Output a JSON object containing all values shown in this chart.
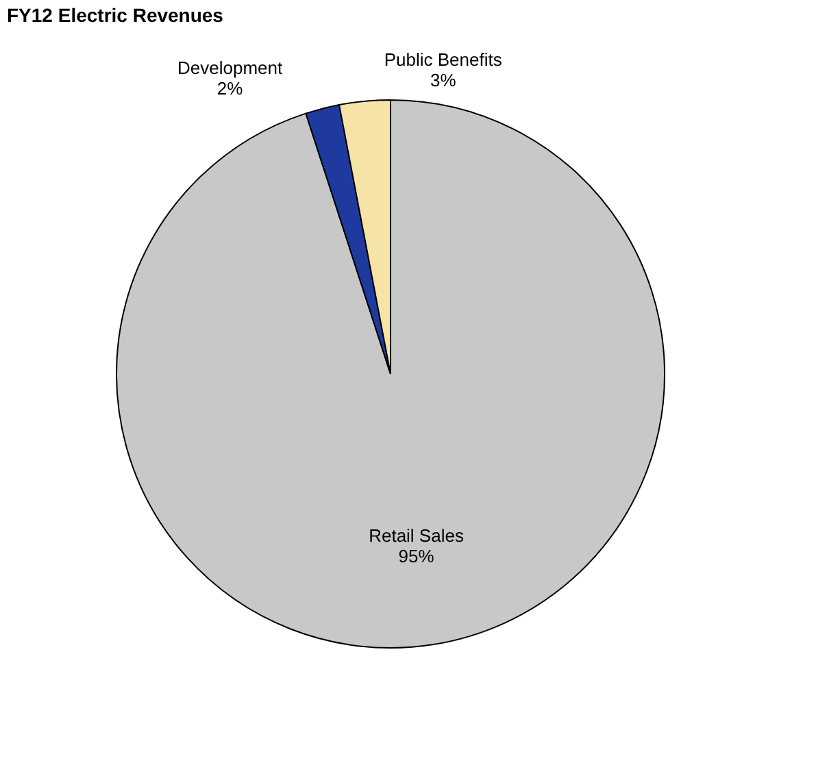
{
  "chart_data": {
    "type": "pie",
    "title": "FY12 Electric Revenues",
    "categories": [
      "Retail Sales",
      "Development",
      "Public Benefits"
    ],
    "values": [
      95,
      2,
      3
    ],
    "colors": [
      "#c8c8c8",
      "#1f3a9e",
      "#f5e3a8"
    ],
    "value_labels": [
      "95%",
      "2%",
      "3%"
    ]
  }
}
